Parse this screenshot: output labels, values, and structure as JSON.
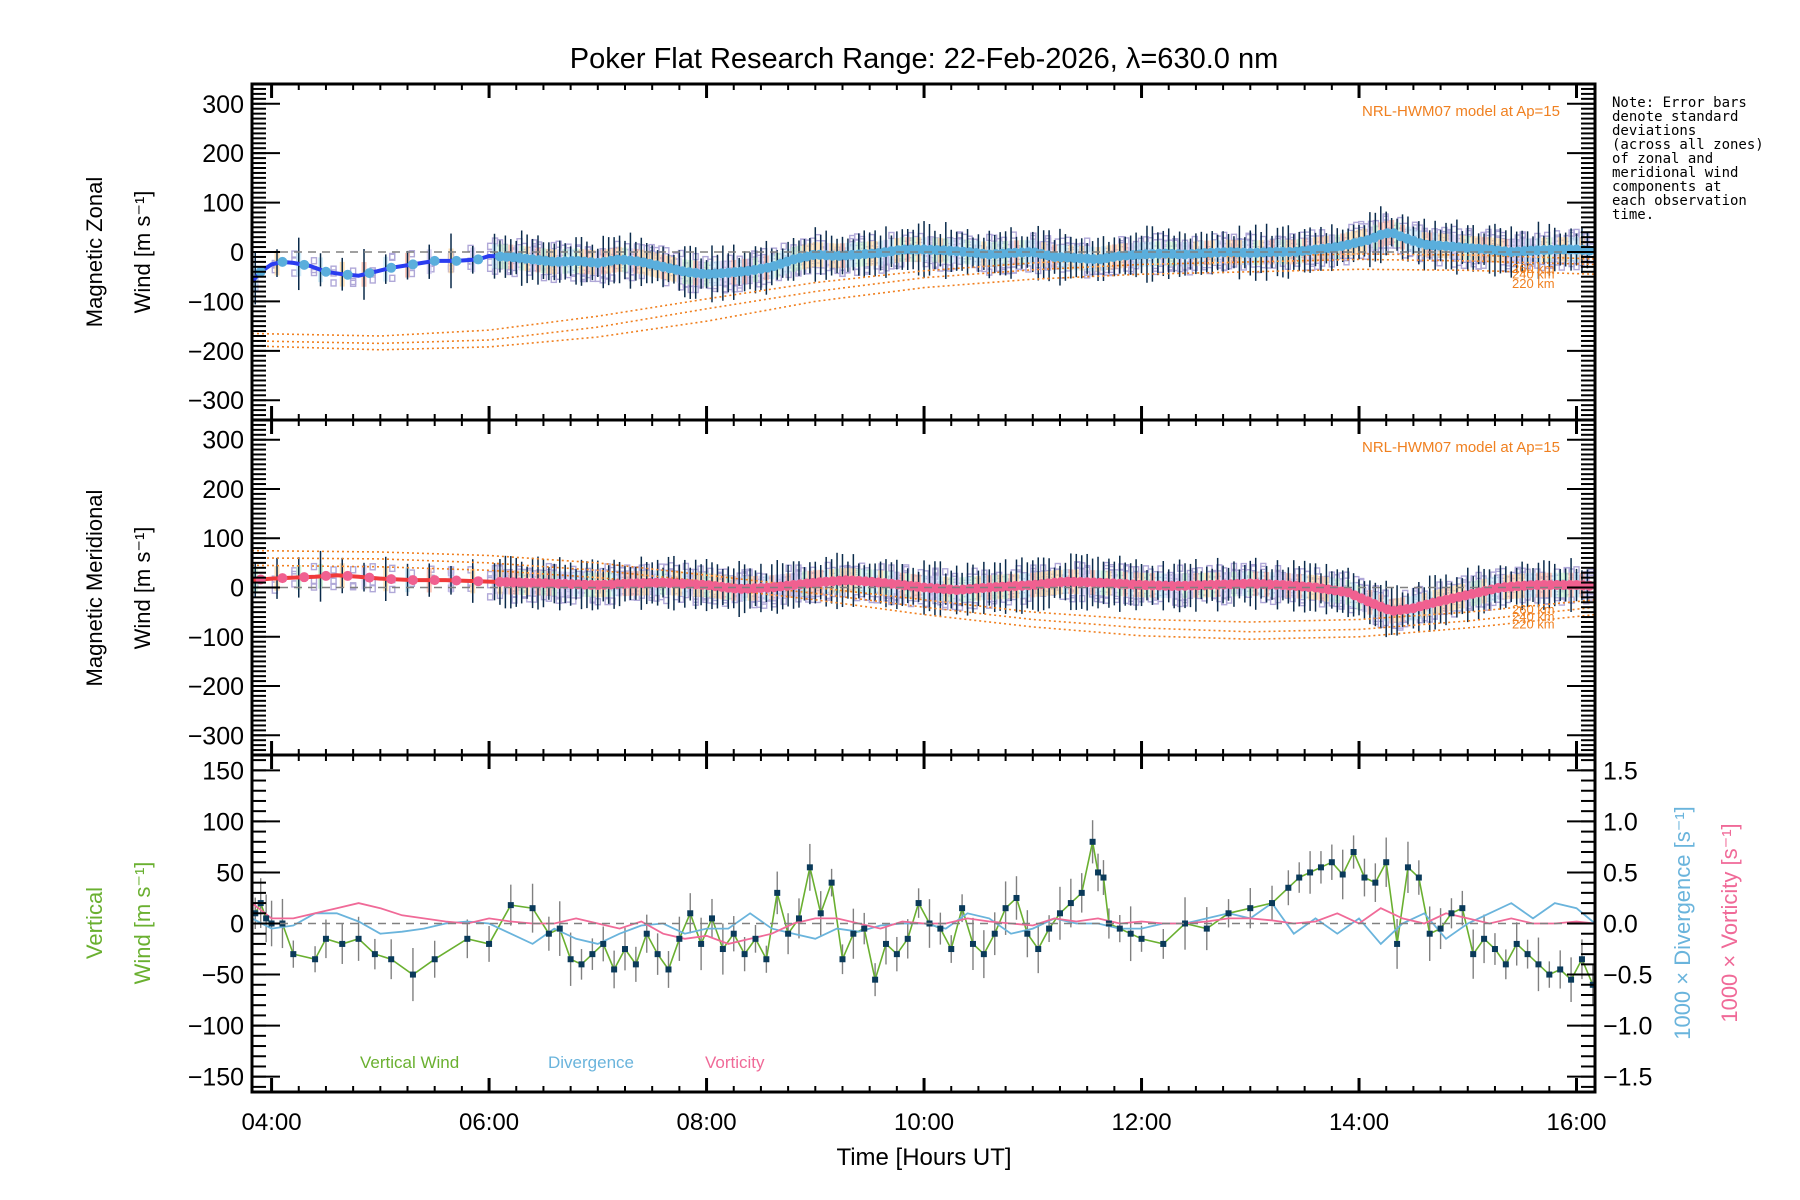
{
  "title": "Poker Flat Research Range: 22-Feb-2026, λ=630.0 nm",
  "note": "Note: Error bars\ndenote standard\ndeviations\n(across all zones)\nof zonal and\nmeridional wind\ncomponents at\neach observation\ntime.",
  "colors": {
    "zonal_fit": "#2a3cf0",
    "zonal_points": "#5aaedc",
    "meridional_fit": "#f03a3a",
    "meridional_points": "#f06090",
    "model": "#f08020",
    "scatter": "#b0a8d8",
    "errorbar": "#0a2a4a",
    "vertical": "#6ab030",
    "vertical_points": "#0a3a5a",
    "divergence": "#6ab4dc",
    "vorticity": "#f06a98",
    "zero": "#808080"
  },
  "chart_data": [
    {
      "type": "line",
      "name": "zonal",
      "ylabel_line1": "Magnetic Zonal",
      "ylabel_line2": "Wind [m s⁻¹]",
      "ylim": [
        -340,
        340
      ],
      "yticks": [
        -300,
        -200,
        -100,
        0,
        100,
        200,
        300
      ],
      "xlim_hours": [
        3.82,
        16.17
      ],
      "model_label": "NRL-HWM07 model at Ap=15",
      "model_altitude_labels": [
        "260 km",
        "240 km",
        "220 km"
      ],
      "fit": {
        "x": [
          3.82,
          3.9,
          4.0,
          4.1,
          4.2,
          4.35,
          4.5,
          4.65,
          4.8,
          4.95,
          5.1,
          5.3,
          5.5,
          5.7,
          5.9,
          6.0,
          6.2,
          6.4,
          6.6,
          6.8,
          7.0,
          7.2,
          7.4,
          7.6,
          7.8,
          8.0,
          8.2,
          8.4,
          8.6,
          8.8,
          9.0,
          9.2,
          9.4,
          9.6,
          9.8,
          10.0,
          10.2,
          10.4,
          10.6,
          10.8,
          11.0,
          11.2,
          11.4,
          11.6,
          11.8,
          12.0,
          12.2,
          12.4,
          12.6,
          12.8,
          13.0,
          13.2,
          13.4,
          13.6,
          13.8,
          14.0,
          14.1,
          14.2,
          14.3,
          14.4,
          14.6,
          14.8,
          15.0,
          15.2,
          15.4,
          15.6,
          15.8,
          16.0,
          16.17
        ],
        "y": [
          -60,
          -40,
          -25,
          -20,
          -22,
          -28,
          -40,
          -45,
          -48,
          -40,
          -32,
          -25,
          -18,
          -18,
          -15,
          -8,
          -10,
          -15,
          -20,
          -18,
          -22,
          -15,
          -20,
          -30,
          -40,
          -45,
          -42,
          -38,
          -30,
          -15,
          -5,
          -8,
          -5,
          -2,
          5,
          5,
          3,
          0,
          -5,
          -2,
          0,
          -10,
          -12,
          -15,
          -8,
          -5,
          -3,
          -5,
          -2,
          0,
          -2,
          0,
          0,
          5,
          10,
          20,
          25,
          35,
          40,
          30,
          15,
          12,
          8,
          5,
          0,
          3,
          5,
          5,
          2
        ]
      },
      "model": [
        {
          "label": "260 km",
          "x": [
            3.82,
            5.0,
            6.0,
            7.0,
            8.0,
            9.0,
            10.0,
            11.0,
            12.0,
            13.0,
            14.0,
            15.0,
            16.17
          ],
          "y": [
            -165,
            -170,
            -158,
            -130,
            -95,
            -62,
            -38,
            -22,
            -12,
            -8,
            -4,
            -6,
            -14
          ]
        },
        {
          "label": "240 km",
          "x": [
            3.82,
            5.0,
            6.0,
            7.0,
            8.0,
            9.0,
            10.0,
            11.0,
            12.0,
            13.0,
            14.0,
            15.0,
            16.17
          ],
          "y": [
            -180,
            -185,
            -178,
            -152,
            -115,
            -80,
            -52,
            -36,
            -25,
            -20,
            -15,
            -18,
            -25
          ]
        },
        {
          "label": "220 km",
          "x": [
            3.82,
            5.0,
            6.0,
            7.0,
            8.0,
            9.0,
            10.0,
            11.0,
            12.0,
            13.0,
            14.0,
            15.0,
            16.17
          ],
          "y": [
            -190,
            -198,
            -192,
            -172,
            -140,
            -100,
            -72,
            -55,
            -45,
            -40,
            -35,
            -37,
            -45
          ]
        }
      ]
    },
    {
      "type": "line",
      "name": "meridional",
      "ylabel_line1": "Magnetic Meridional",
      "ylabel_line2": "Wind [m s⁻¹]",
      "ylim": [
        -340,
        340
      ],
      "yticks": [
        -300,
        -200,
        -100,
        0,
        100,
        200,
        300
      ],
      "xlim_hours": [
        3.82,
        16.17
      ],
      "model_label": "NRL-HWM07 model at Ap=15",
      "model_altitude_labels": [
        "260 km",
        "240 km",
        "220 km"
      ],
      "fit": {
        "x": [
          3.82,
          4.0,
          4.2,
          4.4,
          4.6,
          4.8,
          5.0,
          5.3,
          5.6,
          6.0,
          6.3,
          6.6,
          7.0,
          7.3,
          7.6,
          8.0,
          8.3,
          8.6,
          9.0,
          9.3,
          9.6,
          10.0,
          10.3,
          10.6,
          11.0,
          11.3,
          11.6,
          12.0,
          12.3,
          12.6,
          13.0,
          13.3,
          13.6,
          13.9,
          14.1,
          14.3,
          14.5,
          14.7,
          15.0,
          15.3,
          15.6,
          16.0,
          16.17
        ],
        "y": [
          15,
          18,
          20,
          22,
          25,
          22,
          18,
          15,
          15,
          12,
          10,
          8,
          5,
          8,
          10,
          5,
          -3,
          0,
          10,
          15,
          10,
          0,
          -5,
          0,
          5,
          12,
          10,
          5,
          3,
          5,
          8,
          5,
          0,
          -10,
          -30,
          -48,
          -42,
          -30,
          -15,
          0,
          5,
          5,
          3
        ]
      },
      "model": [
        {
          "label": "260 km",
          "x": [
            3.82,
            5.0,
            6.0,
            7.0,
            8.0,
            9.0,
            10.0,
            11.0,
            12.0,
            13.0,
            14.0,
            15.0,
            16.17
          ],
          "y": [
            75,
            72,
            65,
            50,
            25,
            0,
            -25,
            -50,
            -65,
            -70,
            -65,
            -50,
            -25
          ]
        },
        {
          "label": "240 km",
          "x": [
            3.82,
            5.0,
            6.0,
            7.0,
            8.0,
            9.0,
            10.0,
            11.0,
            12.0,
            13.0,
            14.0,
            15.0,
            16.17
          ],
          "y": [
            60,
            58,
            50,
            35,
            12,
            -12,
            -40,
            -65,
            -82,
            -90,
            -85,
            -68,
            -40
          ]
        },
        {
          "label": "220 km",
          "x": [
            3.82,
            5.0,
            6.0,
            7.0,
            8.0,
            9.0,
            10.0,
            11.0,
            12.0,
            13.0,
            14.0,
            15.0,
            16.17
          ],
          "y": [
            45,
            42,
            35,
            20,
            0,
            -25,
            -55,
            -80,
            -98,
            -105,
            -100,
            -82,
            -55
          ]
        }
      ]
    },
    {
      "type": "line",
      "name": "vertical",
      "ylabel_line1": "Vertical",
      "ylabel_line2": "Wind [m s⁻¹]",
      "ylim": [
        -165,
        165
      ],
      "yticks": [
        -150,
        -100,
        -50,
        0,
        50,
        100,
        150
      ],
      "y2lim": [
        -1.65,
        1.65
      ],
      "y2ticks": [
        "-1.5",
        "-1.0",
        "-0.5",
        "0.0",
        "0.5",
        "1.0",
        "1.5"
      ],
      "y2label_divergence": "1000 × Divergence [s⁻¹]",
      "y2label_vorticity": "1000 × Vorticity [s⁻¹]",
      "legend": [
        "Vertical Wind",
        "Divergence",
        "Vorticity"
      ],
      "legend_placement": "bottom-left",
      "xlabel": "Time [Hours UT]",
      "xticks": [
        "04:00",
        "06:00",
        "08:00",
        "10:00",
        "12:00",
        "14:00",
        "16:00"
      ],
      "xtick_hours": [
        4,
        6,
        8,
        10,
        12,
        14,
        16
      ],
      "vertical_wind": {
        "x": [
          3.85,
          3.9,
          3.95,
          4.0,
          4.1,
          4.2,
          4.4,
          4.5,
          4.65,
          4.8,
          4.95,
          5.1,
          5.3,
          5.5,
          5.8,
          6.0,
          6.2,
          6.4,
          6.55,
          6.65,
          6.75,
          6.85,
          6.95,
          7.05,
          7.15,
          7.25,
          7.35,
          7.45,
          7.55,
          7.65,
          7.75,
          7.85,
          7.95,
          8.05,
          8.15,
          8.25,
          8.35,
          8.45,
          8.55,
          8.65,
          8.75,
          8.85,
          8.95,
          9.05,
          9.15,
          9.25,
          9.35,
          9.45,
          9.55,
          9.65,
          9.75,
          9.85,
          9.95,
          10.05,
          10.15,
          10.25,
          10.35,
          10.45,
          10.55,
          10.65,
          10.75,
          10.85,
          10.95,
          11.05,
          11.15,
          11.25,
          11.35,
          11.45,
          11.55,
          11.6,
          11.65,
          11.7,
          11.8,
          11.9,
          12.0,
          12.2,
          12.4,
          12.6,
          12.8,
          13.0,
          13.2,
          13.35,
          13.45,
          13.55,
          13.65,
          13.75,
          13.85,
          13.95,
          14.05,
          14.15,
          14.25,
          14.35,
          14.45,
          14.55,
          14.65,
          14.75,
          14.85,
          14.95,
          15.05,
          15.15,
          15.25,
          15.35,
          15.45,
          15.55,
          15.65,
          15.75,
          15.85,
          15.95,
          16.05,
          16.15
        ],
        "y": [
          10,
          20,
          5,
          0,
          0,
          -30,
          -35,
          -15,
          -20,
          -15,
          -30,
          -35,
          -50,
          -35,
          -15,
          -20,
          18,
          15,
          -10,
          -5,
          -35,
          -40,
          -30,
          -20,
          -45,
          -25,
          -40,
          -10,
          -30,
          -45,
          -15,
          10,
          -20,
          5,
          -25,
          -10,
          -30,
          -15,
          -35,
          30,
          -10,
          5,
          55,
          10,
          40,
          -35,
          -10,
          -5,
          -55,
          -20,
          -30,
          -15,
          20,
          0,
          -5,
          -25,
          15,
          -20,
          -30,
          -10,
          15,
          25,
          -10,
          -25,
          -5,
          10,
          20,
          30,
          80,
          50,
          45,
          0,
          -5,
          -10,
          -15,
          -20,
          0,
          -5,
          10,
          15,
          20,
          35,
          45,
          50,
          55,
          60,
          48,
          70,
          45,
          40,
          60,
          -20,
          55,
          45,
          -10,
          -5,
          10,
          15,
          -30,
          -15,
          -25,
          -40,
          -20,
          -30,
          -40,
          -50,
          -45,
          -55,
          -35,
          -60
        ],
        "error_typical": 18
      },
      "divergence": {
        "x": [
          3.82,
          4.0,
          4.2,
          4.4,
          4.6,
          4.8,
          5.0,
          5.2,
          5.4,
          5.6,
          5.8,
          6.0,
          6.2,
          6.4,
          6.6,
          6.8,
          7.0,
          7.2,
          7.4,
          7.6,
          7.8,
          8.0,
          8.2,
          8.4,
          8.6,
          8.8,
          9.0,
          9.2,
          9.4,
          9.6,
          9.8,
          10.0,
          10.2,
          10.4,
          10.6,
          10.8,
          11.0,
          11.2,
          11.4,
          11.6,
          11.8,
          12.0,
          12.2,
          12.4,
          12.6,
          12.8,
          13.0,
          13.2,
          13.4,
          13.6,
          13.8,
          14.0,
          14.2,
          14.4,
          14.6,
          14.8,
          15.0,
          15.2,
          15.4,
          15.6,
          15.8,
          16.0,
          16.17
        ],
        "y": [
          0.05,
          -0.05,
          -0.02,
          0.1,
          0.1,
          0.02,
          -0.1,
          -0.08,
          -0.05,
          0.0,
          0.02,
          0.0,
          -0.1,
          -0.2,
          -0.05,
          -0.15,
          -0.2,
          -0.1,
          -0.02,
          0.0,
          -0.1,
          -0.05,
          -0.05,
          0.1,
          -0.05,
          -0.1,
          -0.15,
          -0.05,
          -0.08,
          -0.02,
          0.0,
          0.0,
          -0.05,
          0.1,
          0.05,
          -0.1,
          -0.05,
          0.05,
          0.0,
          0.0,
          -0.05,
          -0.05,
          0.0,
          0.0,
          0.05,
          0.1,
          0.05,
          0.2,
          -0.1,
          0.05,
          -0.1,
          0.05,
          -0.2,
          0.0,
          0.1,
          -0.15,
          0.0,
          0.1,
          0.2,
          0.05,
          0.2,
          0.15,
          0.0
        ]
      },
      "vorticity": {
        "x": [
          3.82,
          4.0,
          4.2,
          4.4,
          4.6,
          4.8,
          5.0,
          5.2,
          5.4,
          5.6,
          5.8,
          6.0,
          6.2,
          6.4,
          6.6,
          6.8,
          7.0,
          7.2,
          7.4,
          7.6,
          7.8,
          8.0,
          8.2,
          8.4,
          8.6,
          8.8,
          9.0,
          9.2,
          9.4,
          9.6,
          9.8,
          10.0,
          10.2,
          10.4,
          10.6,
          10.8,
          11.0,
          11.2,
          11.4,
          11.6,
          11.8,
          12.0,
          12.2,
          12.4,
          12.6,
          12.8,
          13.0,
          13.2,
          13.4,
          13.6,
          13.8,
          14.0,
          14.2,
          14.4,
          14.6,
          14.8,
          15.0,
          15.2,
          15.4,
          15.6,
          15.8,
          16.0,
          16.17
        ],
        "y": [
          0.2,
          0.05,
          0.05,
          0.1,
          0.15,
          0.2,
          0.15,
          0.08,
          0.05,
          0.02,
          0.0,
          0.05,
          0.02,
          0.0,
          0.0,
          0.05,
          0.0,
          -0.05,
          0.02,
          -0.1,
          -0.15,
          -0.12,
          -0.2,
          -0.15,
          -0.1,
          0.0,
          0.05,
          0.05,
          0.0,
          -0.05,
          0.02,
          0.0,
          0.0,
          0.05,
          0.02,
          0.0,
          -0.02,
          0.05,
          0.02,
          0.05,
          0.0,
          0.02,
          0.0,
          0.0,
          0.02,
          0.05,
          0.05,
          0.03,
          0.0,
          0.02,
          0.1,
          0.0,
          0.15,
          0.05,
          0.0,
          0.1,
          0.05,
          0.0,
          0.05,
          0.0,
          0.0,
          0.02,
          0.0
        ]
      }
    }
  ]
}
